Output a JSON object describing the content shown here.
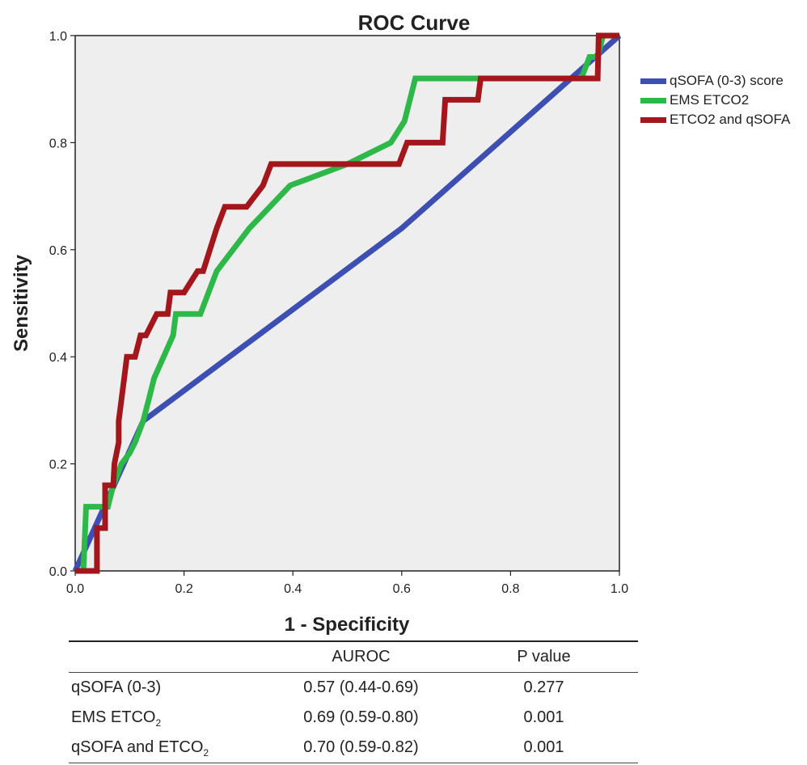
{
  "chart_data": {
    "type": "line",
    "title": "ROC Curve",
    "xlabel": "1 - Specificity",
    "ylabel": "Sensitivity",
    "xlim": [
      0,
      1
    ],
    "ylim": [
      0,
      1
    ],
    "xticks": [
      "0.0",
      "0.2",
      "0.4",
      "0.6",
      "0.8",
      "1.0"
    ],
    "yticks": [
      "0.0",
      "0.2",
      "0.4",
      "0.6",
      "0.8",
      "1.0"
    ],
    "legend_position": "right",
    "series": [
      {
        "name": "qSOFA (0-3) score",
        "color": "#3d4fb0",
        "points": [
          [
            0,
            0
          ],
          [
            0.125,
            0.28
          ],
          [
            0.6,
            0.64
          ],
          [
            1,
            1
          ]
        ]
      },
      {
        "name": "EMS ETCO2",
        "color": "#2fb84a",
        "points": [
          [
            0,
            0
          ],
          [
            0.015,
            0
          ],
          [
            0.02,
            0.12
          ],
          [
            0.05,
            0.12
          ],
          [
            0.06,
            0.12
          ],
          [
            0.07,
            0.16
          ],
          [
            0.085,
            0.2
          ],
          [
            0.1,
            0.22
          ],
          [
            0.11,
            0.24
          ],
          [
            0.125,
            0.28
          ],
          [
            0.135,
            0.32
          ],
          [
            0.145,
            0.36
          ],
          [
            0.18,
            0.44
          ],
          [
            0.185,
            0.48
          ],
          [
            0.23,
            0.48
          ],
          [
            0.26,
            0.56
          ],
          [
            0.32,
            0.64
          ],
          [
            0.395,
            0.72
          ],
          [
            0.5,
            0.76
          ],
          [
            0.58,
            0.8
          ],
          [
            0.605,
            0.84
          ],
          [
            0.625,
            0.92
          ],
          [
            0.74,
            0.92
          ],
          [
            0.93,
            0.92
          ],
          [
            0.945,
            0.96
          ],
          [
            0.96,
            0.96
          ],
          [
            0.97,
            1
          ],
          [
            1,
            1
          ]
        ]
      },
      {
        "name": "ETCO2 and qSOFA",
        "color": "#a3161c",
        "points": [
          [
            0,
            0
          ],
          [
            0.04,
            0
          ],
          [
            0.04,
            0.08
          ],
          [
            0.055,
            0.08
          ],
          [
            0.055,
            0.16
          ],
          [
            0.07,
            0.16
          ],
          [
            0.072,
            0.2
          ],
          [
            0.08,
            0.24
          ],
          [
            0.08,
            0.28
          ],
          [
            0.09,
            0.36
          ],
          [
            0.095,
            0.4
          ],
          [
            0.11,
            0.4
          ],
          [
            0.12,
            0.44
          ],
          [
            0.13,
            0.44
          ],
          [
            0.15,
            0.48
          ],
          [
            0.17,
            0.48
          ],
          [
            0.175,
            0.52
          ],
          [
            0.2,
            0.52
          ],
          [
            0.225,
            0.56
          ],
          [
            0.235,
            0.56
          ],
          [
            0.26,
            0.64
          ],
          [
            0.275,
            0.68
          ],
          [
            0.315,
            0.68
          ],
          [
            0.345,
            0.72
          ],
          [
            0.36,
            0.76
          ],
          [
            0.595,
            0.76
          ],
          [
            0.61,
            0.8
          ],
          [
            0.64,
            0.8
          ],
          [
            0.675,
            0.8
          ],
          [
            0.68,
            0.88
          ],
          [
            0.71,
            0.88
          ],
          [
            0.74,
            0.88
          ],
          [
            0.745,
            0.92
          ],
          [
            0.96,
            0.92
          ],
          [
            0.962,
            1
          ],
          [
            1,
            1
          ]
        ]
      }
    ]
  },
  "table": {
    "headers": [
      "",
      "AUROC",
      "P value"
    ],
    "rows": [
      {
        "label": "qSOFA (0-3)",
        "label_sub": "",
        "auroc": "0.57 (0.44-0.69)",
        "p": "0.277"
      },
      {
        "label": "EMS ETCO",
        "label_sub": "2",
        "auroc": "0.69 (0.59-0.80)",
        "p": "0.001"
      },
      {
        "label": "qSOFA and ETCO",
        "label_sub": "2",
        "auroc": "0.70 (0.59-0.82)",
        "p": "0.001"
      }
    ]
  }
}
